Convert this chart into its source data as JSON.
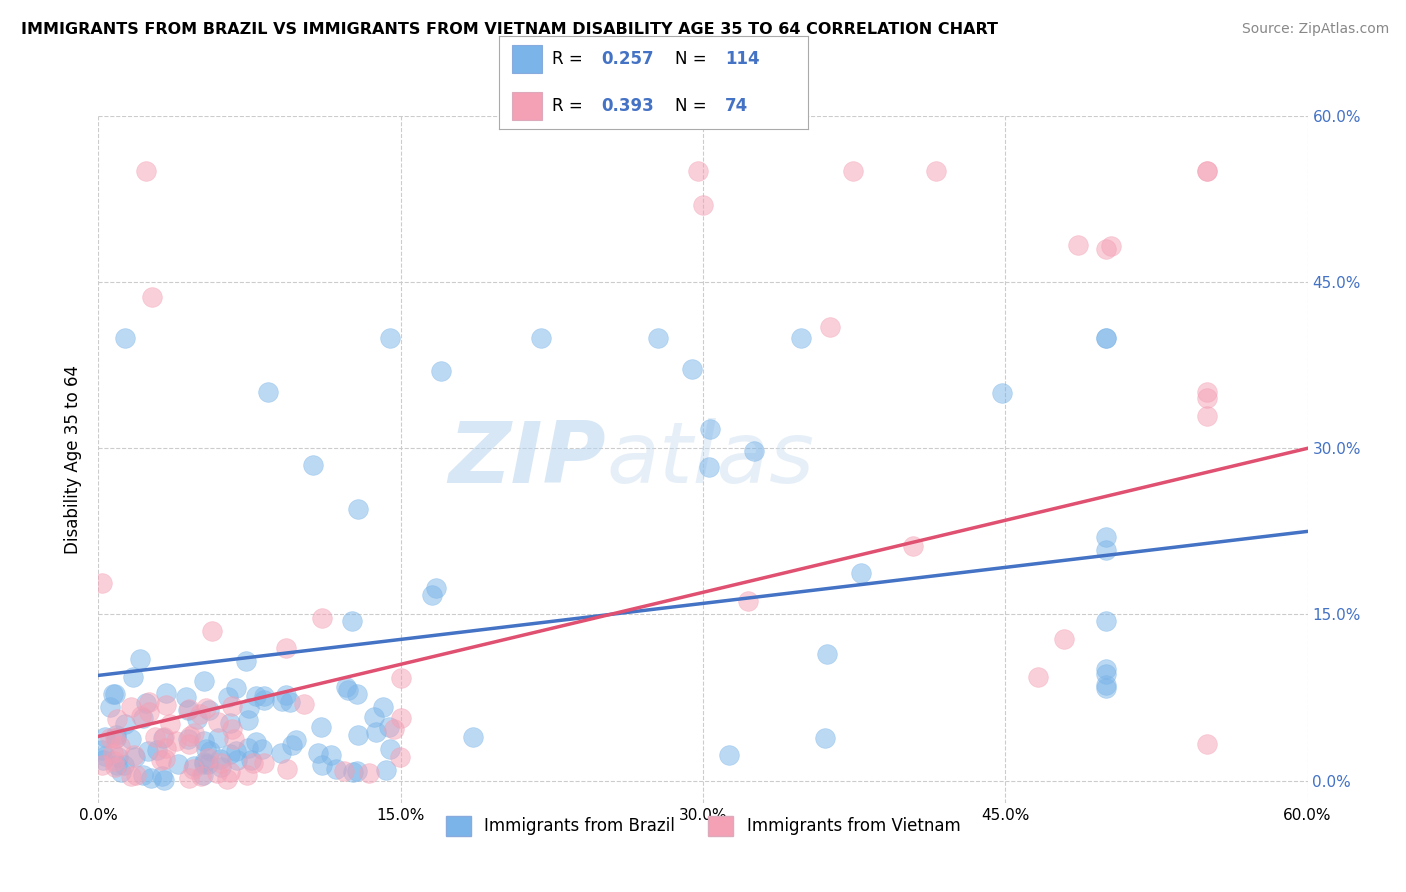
{
  "title": "IMMIGRANTS FROM BRAZIL VS IMMIGRANTS FROM VIETNAM DISABILITY AGE 35 TO 64 CORRELATION CHART",
  "source": "Source: ZipAtlas.com",
  "ylabel": "Disability Age 35 to 64",
  "xmin": 0.0,
  "xmax": 0.6,
  "ymin": -0.02,
  "ymax": 0.6,
  "tick_vals": [
    0.0,
    0.15,
    0.3,
    0.45,
    0.6
  ],
  "tick_labels": [
    "0.0%",
    "15.0%",
    "30.0%",
    "45.0%",
    "60.0%"
  ],
  "brazil_color": "#7ab4e8",
  "vietnam_color": "#f4a0b5",
  "brazil_line_color": "#4472c4",
  "vietnam_line_color": "#e05070",
  "brazil_R": 0.257,
  "brazil_N": 114,
  "vietnam_R": 0.393,
  "vietnam_N": 74,
  "legend_labels": [
    "Immigrants from Brazil",
    "Immigrants from Vietnam"
  ],
  "watermark_zip": "ZIP",
  "watermark_atlas": "atlas",
  "right_tick_color": "#4472c4",
  "source_color": "#888888",
  "grid_color": "#cccccc",
  "scatter_size": 200,
  "scatter_alpha": 0.5
}
